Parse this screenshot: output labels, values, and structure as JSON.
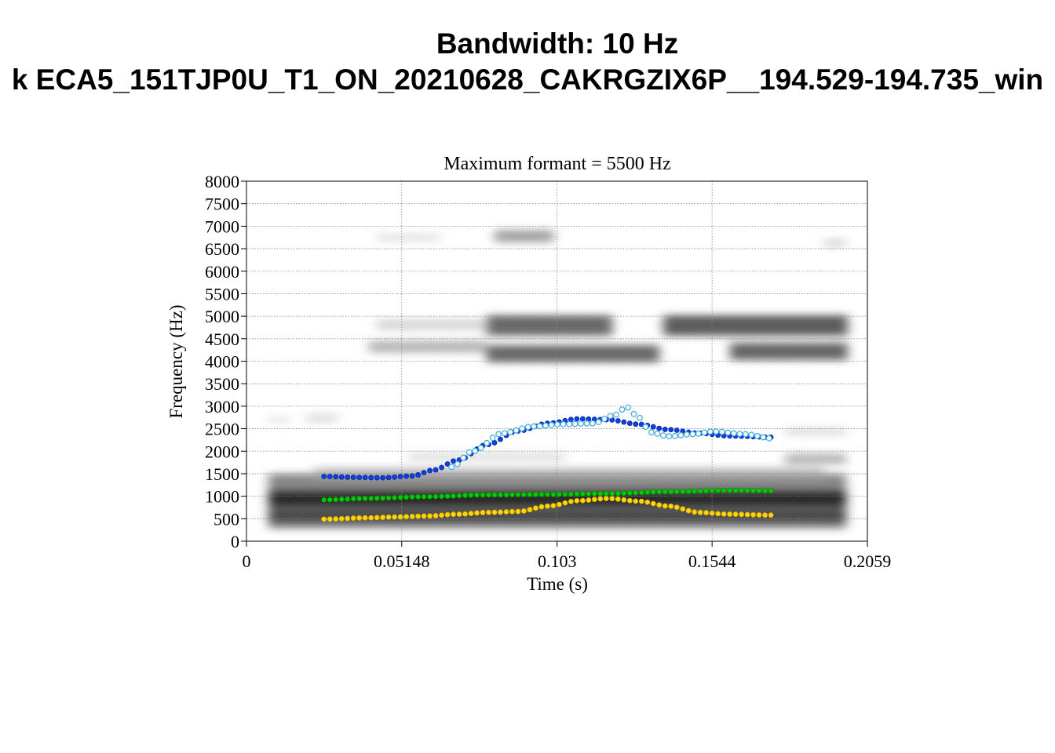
{
  "figure": {
    "title_line1": "Bandwidth: 10 Hz",
    "title_line2": "k ECA5_151TJP0U_T1_ON_20210628_CAKRGZIX6P__194.529-194.735_win"
  },
  "chart_data": {
    "type": "scatter",
    "title": "Maximum formant  =  5500 Hz",
    "xlabel": "Time (s)",
    "ylabel": "Frequency (Hz)",
    "xlim": [
      0,
      0.2059
    ],
    "ylim": [
      0,
      8000
    ],
    "x_ticks": [
      "0",
      "0.05148",
      "0.103",
      "0.1544",
      "0.2059"
    ],
    "x_tick_values": [
      0,
      0.05148,
      0.103,
      0.1544,
      0.2059
    ],
    "y_ticks": [
      "0",
      "500",
      "1000",
      "1500",
      "2000",
      "2500",
      "3000",
      "3500",
      "4000",
      "4500",
      "5000",
      "5500",
      "6000",
      "6500",
      "7000",
      "7500",
      "8000"
    ],
    "y_tick_values": [
      0,
      500,
      1000,
      1500,
      2000,
      2500,
      3000,
      3500,
      4000,
      4500,
      5000,
      5500,
      6000,
      6500,
      7000,
      7500,
      8000
    ],
    "grid": true,
    "background": "spectrogram (grayscale)",
    "series": [
      {
        "marker": "filled-circle",
        "color": "#ffd700",
        "stroke": "#e0b000",
        "x": [
          0.0257,
          0.04,
          0.05,
          0.06,
          0.07,
          0.08,
          0.09,
          0.1,
          0.11,
          0.12,
          0.13,
          0.14,
          0.15,
          0.16,
          0.175
        ],
        "y": [
          490,
          520,
          540,
          560,
          600,
          640,
          660,
          780,
          900,
          950,
          890,
          780,
          640,
          600,
          580
        ]
      },
      {
        "marker": "filled-circle",
        "color": "#00cc00",
        "stroke": "#009000",
        "x": [
          0.0257,
          0.04,
          0.06,
          0.08,
          0.1,
          0.12,
          0.14,
          0.16,
          0.175
        ],
        "y": [
          920,
          950,
          990,
          1030,
          1040,
          1060,
          1100,
          1130,
          1120
        ]
      },
      {
        "marker": "filled-circle",
        "color": "#1040e0",
        "stroke": "#0020a0",
        "x": [
          0.0257,
          0.035,
          0.045,
          0.055,
          0.062,
          0.07,
          0.08,
          0.09,
          0.1,
          0.11,
          0.12,
          0.13,
          0.14,
          0.15,
          0.16,
          0.175
        ],
        "y": [
          1440,
          1420,
          1410,
          1450,
          1580,
          1800,
          2150,
          2450,
          2620,
          2720,
          2700,
          2600,
          2480,
          2400,
          2340,
          2310
        ]
      },
      {
        "marker": "open-circle",
        "color": "#40a8e0",
        "x": [
          0.068,
          0.075,
          0.085,
          0.095,
          0.105,
          0.115,
          0.122,
          0.126,
          0.13,
          0.134,
          0.14,
          0.148,
          0.155,
          0.165,
          0.175
        ],
        "y": [
          1650,
          2000,
          2400,
          2550,
          2600,
          2620,
          2800,
          2980,
          2750,
          2420,
          2330,
          2380,
          2440,
          2380,
          2280
        ]
      }
    ]
  }
}
